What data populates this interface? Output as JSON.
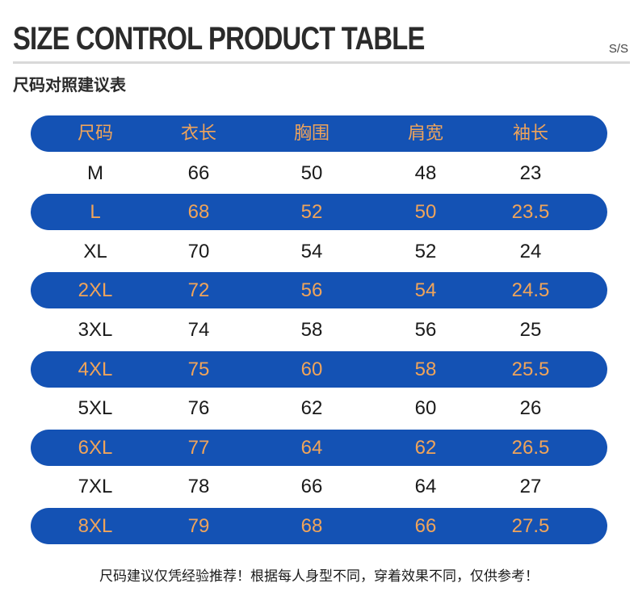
{
  "header": {
    "title": "SIZE CONTROL PRODUCT TABLE",
    "season": "S/S",
    "subtitle": "尺码对照建议表"
  },
  "table": {
    "columns": [
      "尺码",
      "衣长",
      "胸围",
      "肩宽",
      "袖长"
    ],
    "rows": [
      [
        "M",
        "66",
        "50",
        "48",
        "23"
      ],
      [
        "L",
        "68",
        "52",
        "50",
        "23.5"
      ],
      [
        "XL",
        "70",
        "54",
        "52",
        "24"
      ],
      [
        "2XL",
        "72",
        "56",
        "54",
        "24.5"
      ],
      [
        "3XL",
        "74",
        "58",
        "56",
        "25"
      ],
      [
        "4XL",
        "75",
        "60",
        "58",
        "25.5"
      ],
      [
        "5XL",
        "76",
        "62",
        "60",
        "26"
      ],
      [
        "6XL",
        "77",
        "64",
        "62",
        "26.5"
      ],
      [
        "7XL",
        "78",
        "66",
        "64",
        "27"
      ],
      [
        "8XL",
        "79",
        "68",
        "66",
        "27.5"
      ]
    ]
  },
  "colors": {
    "band": "#1452b4",
    "band_text": "#f0a45a",
    "plain_text": "#1a1a1a"
  },
  "footer": {
    "note": "尺码建议仅凭经验推荐！根据每人身型不同，穿着效果不同，仅供参考！"
  }
}
